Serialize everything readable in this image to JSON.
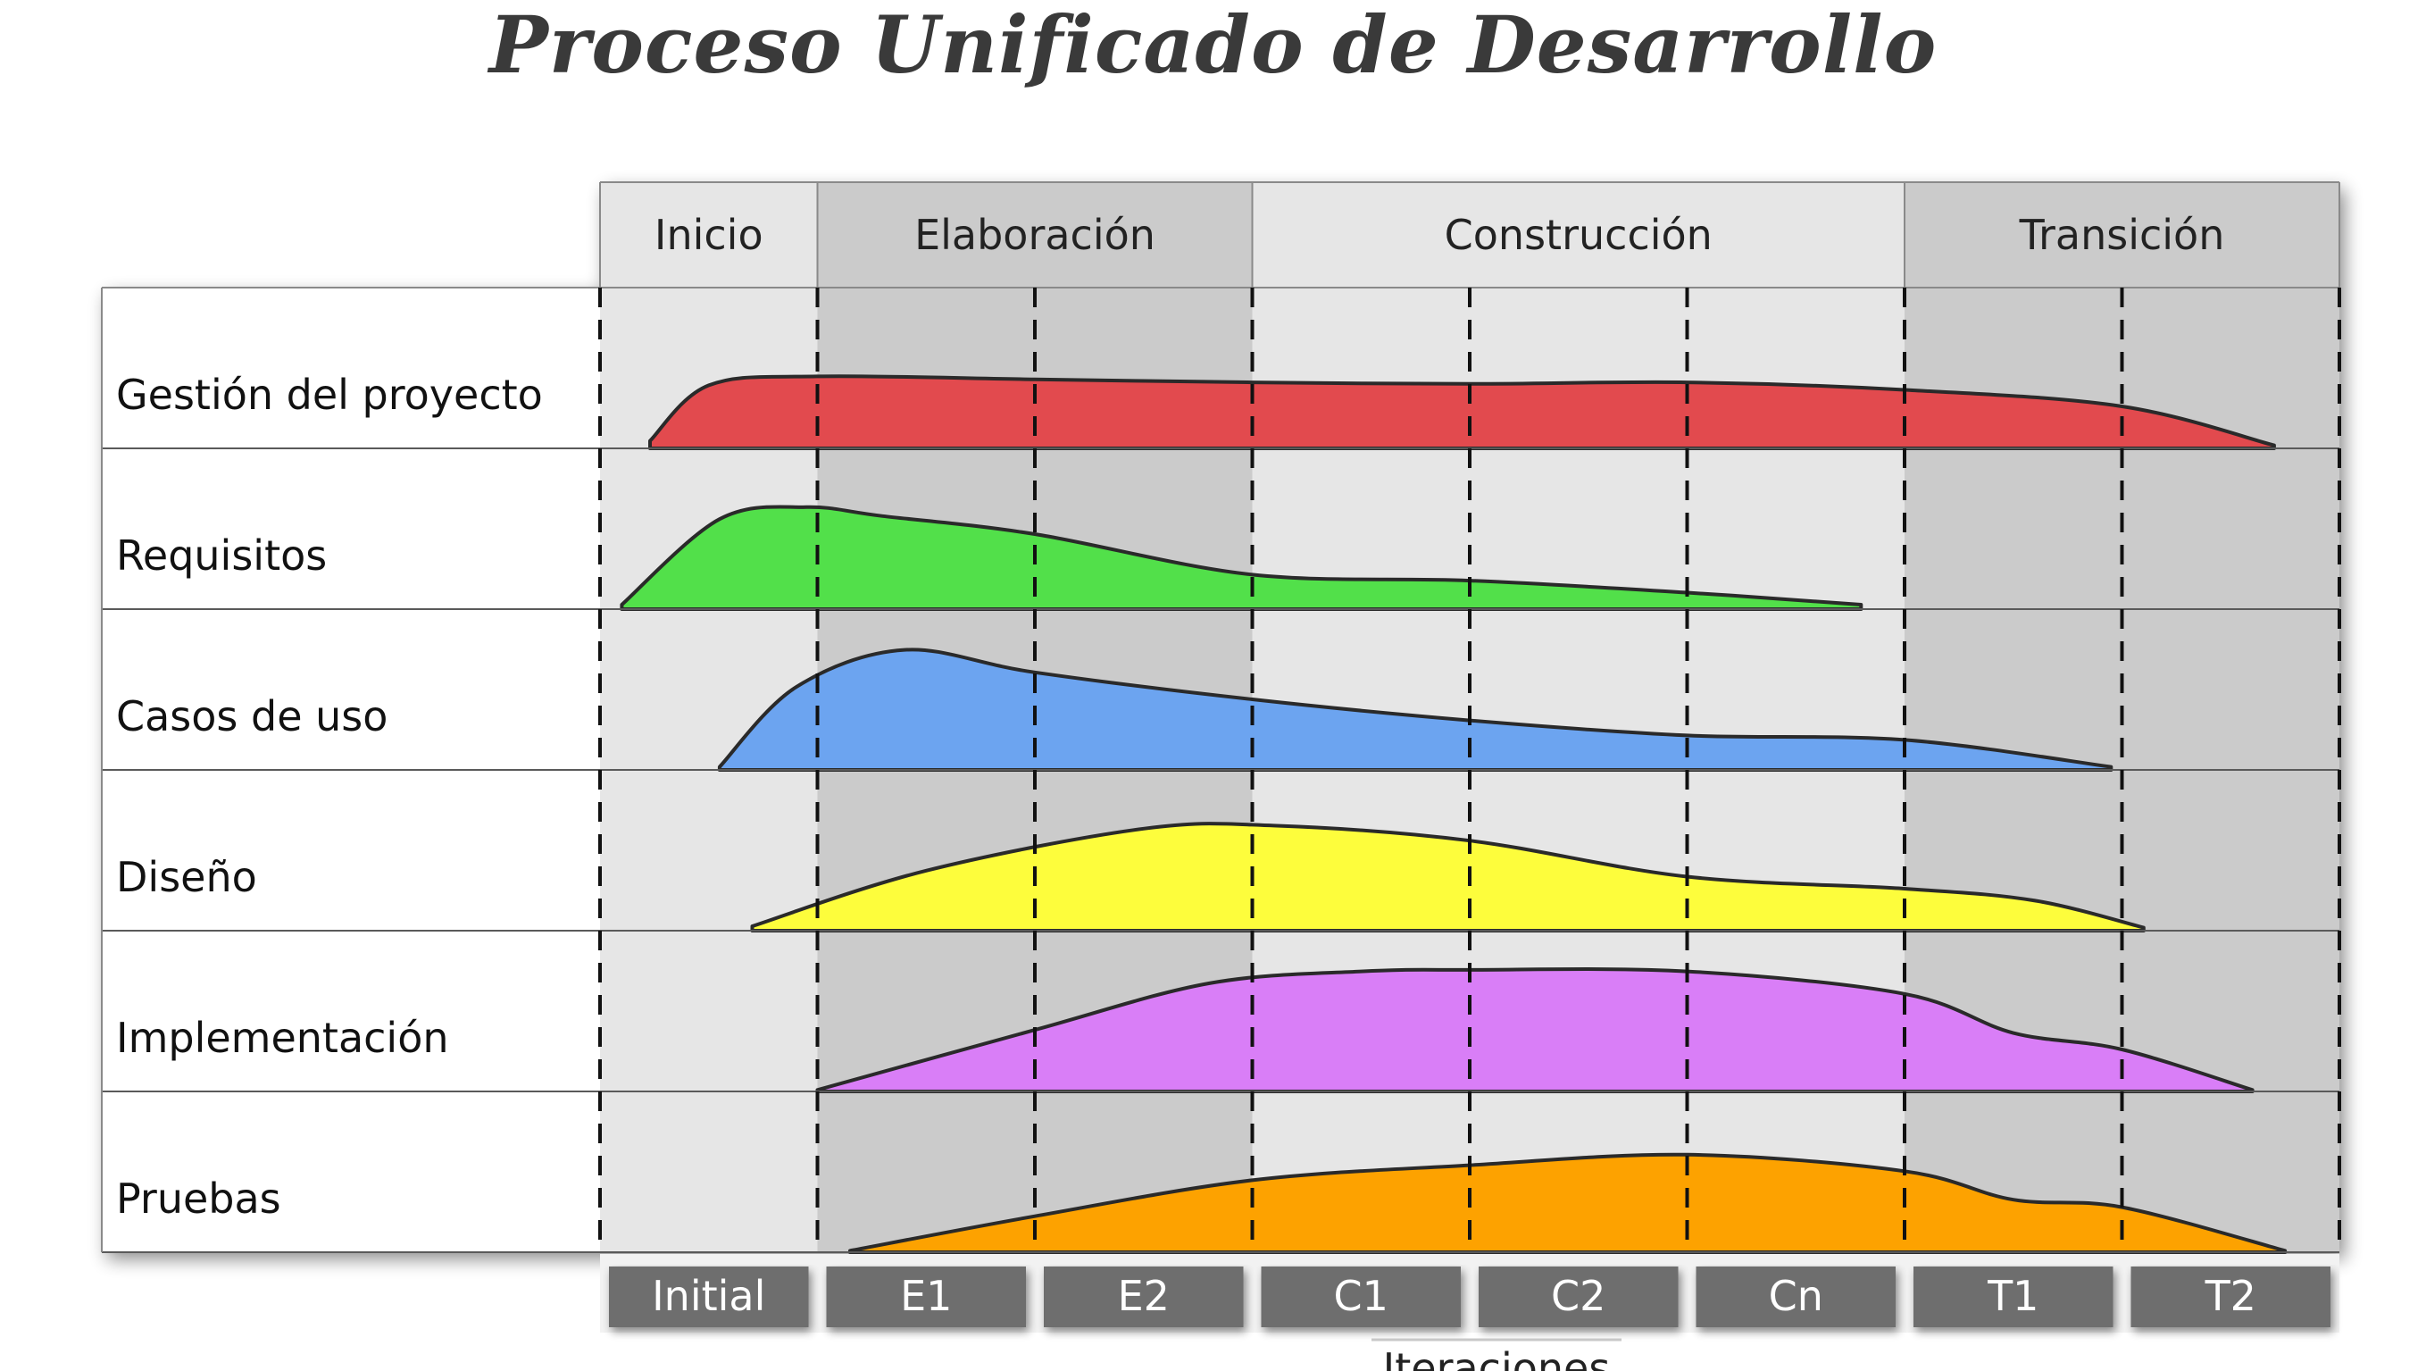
{
  "title": "Proceso Unificado de Desarrollo",
  "phases": [
    {
      "label": "Inicio",
      "iterations": 1
    },
    {
      "label": "Elaboración",
      "iterations": 2
    },
    {
      "label": "Construcción",
      "iterations": 3
    },
    {
      "label": "Transición",
      "iterations": 2
    }
  ],
  "iterations": [
    "Initial",
    "E1",
    "E2",
    "C1",
    "C2",
    "Cn",
    "T1",
    "T2"
  ],
  "iterations_label": "Iteraciones",
  "workflows": [
    {
      "label": "Gestión del proyecto",
      "color": "#e24a4e",
      "profile": [
        [
          0.23,
          0.05
        ],
        [
          0.5,
          0.42
        ],
        [
          1,
          0.48
        ],
        [
          2,
          0.46
        ],
        [
          3,
          0.44
        ],
        [
          4,
          0.43
        ],
        [
          5,
          0.44
        ],
        [
          6,
          0.39
        ],
        [
          7,
          0.28
        ],
        [
          7.7,
          0.02
        ]
      ]
    },
    {
      "label": "Requisitos",
      "color": "#52e04a",
      "profile": [
        [
          0.1,
          0.03
        ],
        [
          0.55,
          0.6
        ],
        [
          0.95,
          0.68
        ],
        [
          1.3,
          0.62
        ],
        [
          2,
          0.5
        ],
        [
          3,
          0.23
        ],
        [
          4,
          0.19
        ],
        [
          5,
          0.11
        ],
        [
          5.8,
          0.03
        ]
      ]
    },
    {
      "label": "Casos de uso",
      "color": "#6ca4f0",
      "profile": [
        [
          0.55,
          0.02
        ],
        [
          0.9,
          0.55
        ],
        [
          1.4,
          0.8
        ],
        [
          2,
          0.65
        ],
        [
          3,
          0.47
        ],
        [
          4,
          0.33
        ],
        [
          5,
          0.23
        ],
        [
          6,
          0.2
        ],
        [
          6.95,
          0.02
        ]
      ]
    },
    {
      "label": "Diseño",
      "color": "#fdfd3c",
      "profile": [
        [
          0.7,
          0.03
        ],
        [
          1.5,
          0.4
        ],
        [
          2.5,
          0.68
        ],
        [
          3.1,
          0.7
        ],
        [
          4,
          0.6
        ],
        [
          5,
          0.36
        ],
        [
          6,
          0.28
        ],
        [
          6.6,
          0.2
        ],
        [
          7.1,
          0.02
        ]
      ]
    },
    {
      "label": "Implementación",
      "color": "#d97ef7",
      "profile": [
        [
          1,
          0.01
        ],
        [
          2,
          0.41
        ],
        [
          2.8,
          0.72
        ],
        [
          3.5,
          0.8
        ],
        [
          4,
          0.81
        ],
        [
          5,
          0.8
        ],
        [
          6,
          0.65
        ],
        [
          6.5,
          0.39
        ],
        [
          7,
          0.28
        ],
        [
          7.6,
          0.01
        ]
      ]
    },
    {
      "label": "Pruebas",
      "color": "#fda200",
      "profile": [
        [
          1.15,
          0.01
        ],
        [
          2,
          0.24
        ],
        [
          3,
          0.48
        ],
        [
          4,
          0.58
        ],
        [
          5,
          0.65
        ],
        [
          6,
          0.54
        ],
        [
          6.5,
          0.35
        ],
        [
          7,
          0.3
        ],
        [
          7.75,
          0.01
        ]
      ]
    }
  ]
}
